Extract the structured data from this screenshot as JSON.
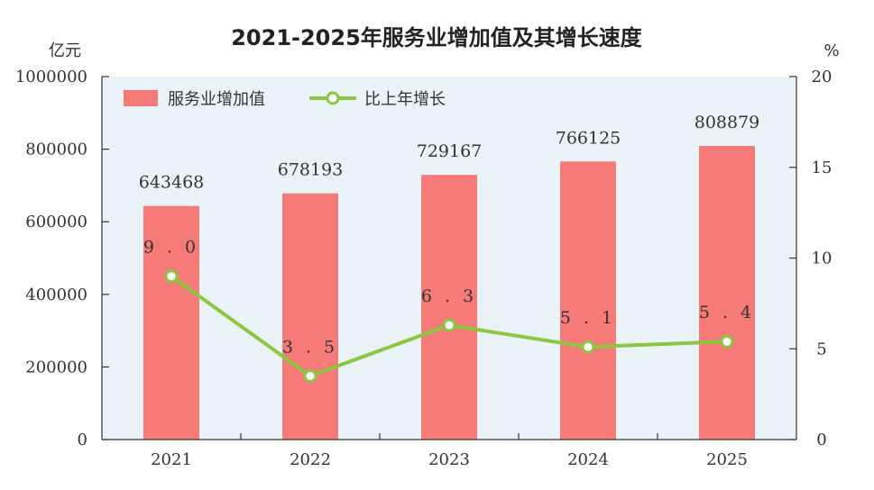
{
  "chart_data": {
    "type": "bar",
    "title": "2021-2025年服务业增加值及其增长速度",
    "categories": [
      "2021",
      "2022",
      "2023",
      "2024",
      "2025"
    ],
    "y_left": {
      "unit_label": "亿元",
      "range": [
        0,
        1000000
      ],
      "ticks": [
        "0",
        "200000",
        "400000",
        "600000",
        "800000",
        "1000000"
      ]
    },
    "y_right": {
      "unit_label": "%",
      "range": [
        0,
        20
      ],
      "ticks": [
        "0",
        "5",
        "10",
        "15",
        "20"
      ]
    },
    "series": [
      {
        "name": "服务业增加值",
        "type": "bar",
        "axis": "left",
        "values": [
          643468,
          678193,
          729167,
          766125,
          808879
        ],
        "labels": [
          "643468",
          "678193",
          "729167",
          "766125",
          "808879"
        ]
      },
      {
        "name": "比上年增长",
        "type": "line",
        "axis": "right",
        "values": [
          9.0,
          3.5,
          6.3,
          5.1,
          5.4
        ],
        "labels": [
          "9.0",
          "3.5",
          "6.3",
          "5.1",
          "5.4"
        ]
      }
    ],
    "legend_position": "top-left",
    "grid": false,
    "colors": {
      "bar": "#f57a78",
      "line": "#8dc63f",
      "marker_fill": "#ffffff",
      "plot_background": "#e9f3f8"
    }
  }
}
